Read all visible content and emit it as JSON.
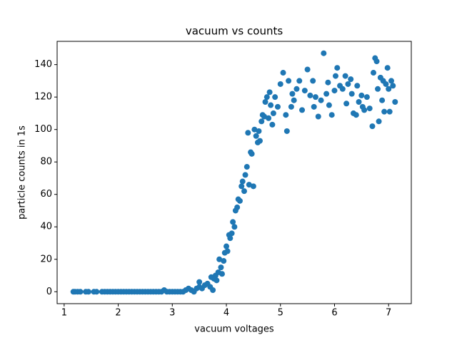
{
  "chart_data": {
    "type": "scatter",
    "title": "vacuum vs counts",
    "x_label": "vacuum voltages",
    "y_label": "particle counts in 1s",
    "color": "#1f77b4",
    "x": [
      1.17,
      1.2,
      1.25,
      1.3,
      1.4,
      1.45,
      1.55,
      1.6,
      1.7,
      1.75,
      1.8,
      1.85,
      1.9,
      1.95,
      2.0,
      2.05,
      2.1,
      2.15,
      2.2,
      2.25,
      2.3,
      2.35,
      2.4,
      2.45,
      2.5,
      2.55,
      2.6,
      2.65,
      2.7,
      2.75,
      2.8,
      2.85,
      2.9,
      2.95,
      3.0,
      3.05,
      3.1,
      3.15,
      3.2,
      3.25,
      3.3,
      3.35,
      3.4,
      3.45,
      3.5,
      3.5,
      3.55,
      3.6,
      3.65,
      3.7,
      3.72,
      3.75,
      3.77,
      3.8,
      3.82,
      3.85,
      3.87,
      3.9,
      3.92,
      3.95,
      3.97,
      4.0,
      4.02,
      4.05,
      4.07,
      4.1,
      4.12,
      4.15,
      4.17,
      4.2,
      4.22,
      4.25,
      4.28,
      4.3,
      4.33,
      4.35,
      4.38,
      4.4,
      4.42,
      4.45,
      4.47,
      4.5,
      4.52,
      4.55,
      4.58,
      4.6,
      4.62,
      4.65,
      4.67,
      4.7,
      4.72,
      4.75,
      4.78,
      4.8,
      4.82,
      4.85,
      4.87,
      4.9,
      4.95,
      5.0,
      5.05,
      5.1,
      5.12,
      5.15,
      5.2,
      5.22,
      5.25,
      5.3,
      5.35,
      5.4,
      5.45,
      5.5,
      5.55,
      5.6,
      5.62,
      5.65,
      5.7,
      5.75,
      5.8,
      5.85,
      5.88,
      5.9,
      5.95,
      6.0,
      6.02,
      6.05,
      6.1,
      6.15,
      6.2,
      6.22,
      6.25,
      6.3,
      6.32,
      6.35,
      6.4,
      6.42,
      6.45,
      6.5,
      6.52,
      6.55,
      6.6,
      6.65,
      6.7,
      6.72,
      6.75,
      6.78,
      6.8,
      6.82,
      6.85,
      6.88,
      6.9,
      6.92,
      6.95,
      6.98,
      7.0,
      7.02,
      7.05,
      7.08,
      7.12
    ],
    "values": [
      0,
      0,
      0,
      0,
      0,
      0,
      0,
      0,
      0,
      0,
      0,
      0,
      0,
      0,
      0,
      0,
      0,
      0,
      0,
      0,
      0,
      0,
      0,
      0,
      0,
      0,
      0,
      0,
      0,
      0,
      0,
      1,
      0,
      0,
      0,
      0,
      0,
      0,
      0,
      1,
      2,
      1,
      0,
      2,
      3,
      6,
      2,
      4,
      5,
      3,
      9,
      1,
      8,
      10,
      7,
      12,
      20,
      15,
      11,
      19,
      24,
      28,
      25,
      35,
      33,
      36,
      43,
      40,
      50,
      52,
      57,
      56,
      65,
      68,
      62,
      72,
      77,
      98,
      66,
      86,
      85,
      65,
      100,
      96,
      92,
      99,
      93,
      105,
      109,
      108,
      117,
      120,
      107,
      123,
      115,
      103,
      110,
      120,
      114,
      128,
      135,
      109,
      99,
      130,
      114,
      122,
      118,
      125,
      130,
      112,
      124,
      137,
      121,
      130,
      114,
      120,
      108,
      118,
      147,
      122,
      129,
      115,
      109,
      124,
      133,
      138,
      127,
      125,
      133,
      116,
      128,
      131,
      122,
      110,
      109,
      127,
      117,
      121,
      114,
      112,
      120,
      113,
      102,
      135,
      144,
      142,
      125,
      105,
      132,
      118,
      130,
      111,
      128,
      138,
      125,
      111,
      130,
      127,
      117
    ],
    "xlim": [
      0.87,
      7.42
    ],
    "ylim": [
      -7.35,
      154.35
    ],
    "xticks": [
      1,
      2,
      3,
      4,
      5,
      6,
      7
    ],
    "yticks": [
      0,
      20,
      40,
      60,
      80,
      100,
      120,
      140
    ]
  }
}
